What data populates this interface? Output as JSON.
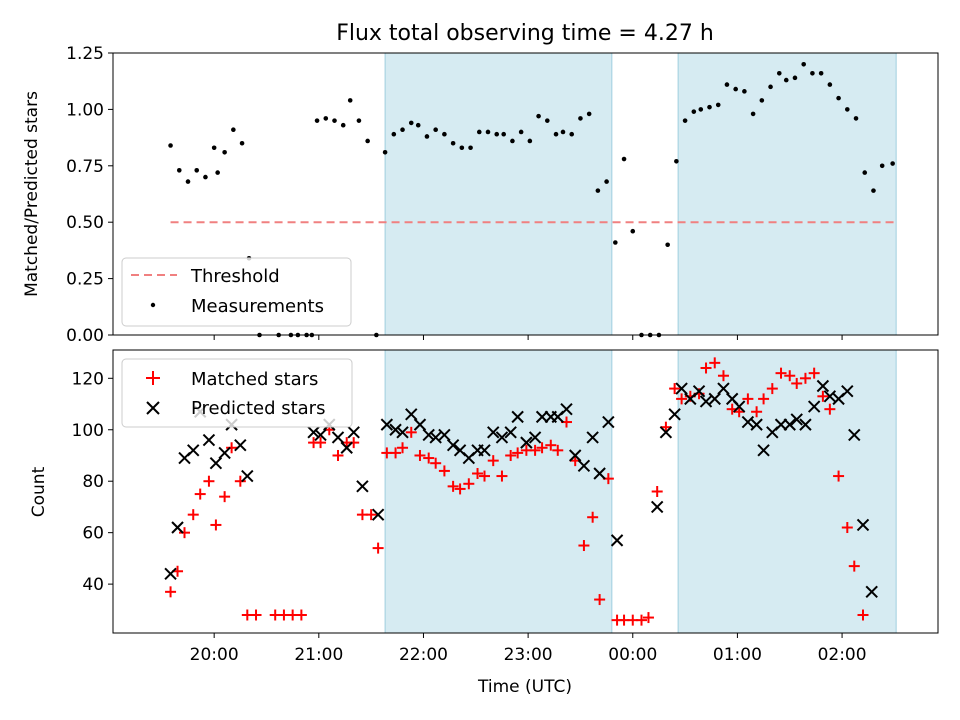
{
  "title": "Flux total observing time = 4.27 h",
  "xlabel": "Time (UTC)",
  "colors": {
    "span": "#add8e6",
    "threshold": "#f08080",
    "measurements": "#000000",
    "matched": "#ff0000",
    "predicted": "#000000"
  },
  "chart_data": [
    {
      "type": "scatter",
      "panel": "top",
      "ylabel": "Matched/Predicted stars",
      "ylim": [
        0,
        1.25
      ],
      "yticks": [
        "0.00",
        "0.25",
        "0.50",
        "0.75",
        "1.00",
        "1.25"
      ],
      "legend": {
        "placement": "lower-left",
        "entries": [
          "Threshold",
          "Measurements"
        ]
      },
      "threshold": {
        "name": "Threshold",
        "value": 0.5,
        "x_range": [
          "19:35",
          "02:31"
        ]
      },
      "shaded_spans": [
        [
          "21:38",
          "23:48"
        ],
        [
          "00:26",
          "02:31"
        ]
      ],
      "series": [
        {
          "name": "Measurements",
          "points": [
            [
              "19:35",
              0.84
            ],
            [
              "19:40",
              0.73
            ],
            [
              "19:45",
              0.68
            ],
            [
              "19:50",
              0.73
            ],
            [
              "19:55",
              0.7
            ],
            [
              "20:00",
              0.83
            ],
            [
              "20:02",
              0.72
            ],
            [
              "20:06",
              0.81
            ],
            [
              "20:11",
              0.91
            ],
            [
              "20:16",
              0.85
            ],
            [
              "20:20",
              0.34
            ],
            [
              "20:26",
              0.0
            ],
            [
              "20:37",
              0.0
            ],
            [
              "20:44",
              0.0
            ],
            [
              "20:48",
              0.0
            ],
            [
              "20:53",
              0.0
            ],
            [
              "20:56",
              0.0
            ],
            [
              "20:59",
              0.95
            ],
            [
              "21:04",
              0.96
            ],
            [
              "21:09",
              0.95
            ],
            [
              "21:14",
              0.93
            ],
            [
              "21:18",
              1.04
            ],
            [
              "21:23",
              0.95
            ],
            [
              "21:28",
              0.86
            ],
            [
              "21:33",
              0.0
            ],
            [
              "21:38",
              0.81
            ],
            [
              "21:43",
              0.89
            ],
            [
              "21:48",
              0.91
            ],
            [
              "21:53",
              0.94
            ],
            [
              "21:57",
              0.93
            ],
            [
              "22:02",
              0.88
            ],
            [
              "22:07",
              0.91
            ],
            [
              "22:12",
              0.89
            ],
            [
              "22:17",
              0.85
            ],
            [
              "22:22",
              0.83
            ],
            [
              "22:27",
              0.83
            ],
            [
              "22:32",
              0.9
            ],
            [
              "22:37",
              0.9
            ],
            [
              "22:42",
              0.89
            ],
            [
              "22:46",
              0.89
            ],
            [
              "22:51",
              0.86
            ],
            [
              "22:56",
              0.9
            ],
            [
              "23:01",
              0.86
            ],
            [
              "23:06",
              0.97
            ],
            [
              "23:11",
              0.95
            ],
            [
              "23:16",
              0.89
            ],
            [
              "23:20",
              0.9
            ],
            [
              "23:25",
              0.89
            ],
            [
              "23:30",
              0.96
            ],
            [
              "23:35",
              0.98
            ],
            [
              "23:40",
              0.64
            ],
            [
              "23:45",
              0.68
            ],
            [
              "23:50",
              0.41
            ],
            [
              "23:55",
              0.78
            ],
            [
              "24:00",
              0.46
            ],
            [
              "24:05",
              0.0
            ],
            [
              "24:10",
              0.0
            ],
            [
              "24:15",
              0.0
            ],
            [
              "24:20",
              0.4
            ],
            [
              "24:25",
              0.77
            ],
            [
              "24:30",
              0.95
            ],
            [
              "24:35",
              0.99
            ],
            [
              "24:39",
              1.0
            ],
            [
              "24:44",
              1.01
            ],
            [
              "24:49",
              1.02
            ],
            [
              "24:54",
              1.11
            ],
            [
              "24:59",
              1.09
            ],
            [
              "25:04",
              1.08
            ],
            [
              "25:09",
              0.98
            ],
            [
              "25:14",
              1.04
            ],
            [
              "25:19",
              1.1
            ],
            [
              "25:24",
              1.16
            ],
            [
              "25:28",
              1.13
            ],
            [
              "25:33",
              1.14
            ],
            [
              "25:38",
              1.2
            ],
            [
              "25:43",
              1.16
            ],
            [
              "25:48",
              1.16
            ],
            [
              "25:53",
              1.11
            ],
            [
              "25:58",
              1.05
            ],
            [
              "26:03",
              1.0
            ],
            [
              "26:08",
              0.96
            ],
            [
              "26:13",
              0.72
            ],
            [
              "26:18",
              0.64
            ],
            [
              "26:23",
              0.75
            ],
            [
              "26:29",
              0.76
            ]
          ]
        }
      ]
    },
    {
      "type": "scatter",
      "panel": "bottom",
      "ylabel": "Count",
      "ylim": [
        21,
        131
      ],
      "yticks": [
        "40",
        "60",
        "80",
        "100",
        "120"
      ],
      "legend": {
        "placement": "top-left",
        "entries": [
          "Matched stars",
          "Predicted stars"
        ]
      },
      "shaded_spans": [
        [
          "21:38",
          "23:48"
        ],
        [
          "00:26",
          "02:31"
        ]
      ],
      "xticks": [
        "20:00",
        "21:00",
        "22:00",
        "23:00",
        "00:00",
        "01:00",
        "02:00"
      ],
      "series": [
        {
          "name": "Matched stars",
          "marker": "+",
          "points": [
            [
              "19:35",
              37
            ],
            [
              "19:39",
              45
            ],
            [
              "19:43",
              60
            ],
            [
              "19:48",
              67
            ],
            [
              "19:52",
              75
            ],
            [
              "19:57",
              80
            ],
            [
              "20:01",
              63
            ],
            [
              "20:06",
              74
            ],
            [
              "20:10",
              93
            ],
            [
              "20:15",
              80
            ],
            [
              "20:19",
              28
            ],
            [
              "20:24",
              28
            ],
            [
              "20:35",
              28
            ],
            [
              "20:40",
              28
            ],
            [
              "20:45",
              28
            ],
            [
              "20:50",
              28
            ],
            [
              "20:57",
              95
            ],
            [
              "21:01",
              95
            ],
            [
              "21:06",
              100
            ],
            [
              "21:11",
              90
            ],
            [
              "21:16",
              95
            ],
            [
              "21:20",
              95
            ],
            [
              "21:25",
              67
            ],
            [
              "21:30",
              67
            ],
            [
              "21:34",
              54
            ],
            [
              "21:39",
              91
            ],
            [
              "21:44",
              91
            ],
            [
              "21:48",
              93
            ],
            [
              "21:53",
              99
            ],
            [
              "21:58",
              90
            ],
            [
              "22:03",
              89
            ],
            [
              "22:07",
              87
            ],
            [
              "22:12",
              84
            ],
            [
              "22:17",
              78
            ],
            [
              "22:21",
              77
            ],
            [
              "22:26",
              79
            ],
            [
              "22:31",
              83
            ],
            [
              "22:35",
              82
            ],
            [
              "22:40",
              88
            ],
            [
              "22:45",
              82
            ],
            [
              "22:50",
              90
            ],
            [
              "22:54",
              91
            ],
            [
              "22:59",
              92
            ],
            [
              "23:04",
              92
            ],
            [
              "23:08",
              93
            ],
            [
              "23:13",
              94
            ],
            [
              "23:17",
              92
            ],
            [
              "23:22",
              103
            ],
            [
              "23:27",
              88
            ],
            [
              "23:32",
              55
            ],
            [
              "23:37",
              66
            ],
            [
              "23:41",
              34
            ],
            [
              "23:46",
              81
            ],
            [
              "23:51",
              26
            ],
            [
              "23:55",
              26
            ],
            [
              "24:00",
              26
            ],
            [
              "24:05",
              26
            ],
            [
              "24:09",
              27
            ],
            [
              "24:14",
              76
            ],
            [
              "24:19",
              101
            ],
            [
              "24:24",
              116
            ],
            [
              "24:28",
              112
            ],
            [
              "24:33",
              113
            ],
            [
              "24:38",
              114
            ],
            [
              "24:42",
              124
            ],
            [
              "24:47",
              126
            ],
            [
              "24:52",
              121
            ],
            [
              "24:57",
              108
            ],
            [
              "25:01",
              107
            ],
            [
              "25:06",
              112
            ],
            [
              "25:11",
              107
            ],
            [
              "25:15",
              112
            ],
            [
              "25:20",
              116
            ],
            [
              "25:25",
              122
            ],
            [
              "25:30",
              121
            ],
            [
              "25:34",
              118
            ],
            [
              "25:39",
              120
            ],
            [
              "25:44",
              122
            ],
            [
              "25:49",
              113
            ],
            [
              "25:53",
              108
            ],
            [
              "25:58",
              82
            ],
            [
              "26:03",
              62
            ],
            [
              "26:07",
              47
            ],
            [
              "26:12",
              28
            ]
          ]
        },
        {
          "name": "Predicted stars",
          "marker": "x",
          "points": [
            [
              "19:35",
              44
            ],
            [
              "19:39",
              62
            ],
            [
              "19:43",
              89
            ],
            [
              "19:48",
              92
            ],
            [
              "19:52",
              107
            ],
            [
              "19:57",
              96
            ],
            [
              "20:01",
              87
            ],
            [
              "20:06",
              91
            ],
            [
              "20:10",
              102
            ],
            [
              "20:15",
              94
            ],
            [
              "20:19",
              82
            ],
            [
              "20:57",
              99
            ],
            [
              "21:01",
              98
            ],
            [
              "21:06",
              102
            ],
            [
              "21:11",
              97
            ],
            [
              "21:16",
              93
            ],
            [
              "21:20",
              99
            ],
            [
              "21:25",
              78
            ],
            [
              "21:34",
              67
            ],
            [
              "21:39",
              102
            ],
            [
              "21:44",
              100
            ],
            [
              "21:48",
              99
            ],
            [
              "21:53",
              106
            ],
            [
              "21:58",
              102
            ],
            [
              "22:03",
              98
            ],
            [
              "22:07",
              97
            ],
            [
              "22:12",
              98
            ],
            [
              "22:17",
              94
            ],
            [
              "22:21",
              92
            ],
            [
              "22:26",
              89
            ],
            [
              "22:31",
              92
            ],
            [
              "22:35",
              92
            ],
            [
              "22:40",
              99
            ],
            [
              "22:45",
              97
            ],
            [
              "22:50",
              99
            ],
            [
              "22:54",
              105
            ],
            [
              "22:59",
              95
            ],
            [
              "23:04",
              97
            ],
            [
              "23:08",
              105
            ],
            [
              "23:13",
              105
            ],
            [
              "23:17",
              105
            ],
            [
              "23:22",
              108
            ],
            [
              "23:27",
              90
            ],
            [
              "23:32",
              86
            ],
            [
              "23:37",
              97
            ],
            [
              "23:41",
              83
            ],
            [
              "23:46",
              103
            ],
            [
              "23:51",
              57
            ],
            [
              "24:14",
              70
            ],
            [
              "24:19",
              99
            ],
            [
              "24:24",
              106
            ],
            [
              "24:28",
              116
            ],
            [
              "24:33",
              112
            ],
            [
              "24:38",
              115
            ],
            [
              "24:42",
              111
            ],
            [
              "24:47",
              112
            ],
            [
              "24:52",
              116
            ],
            [
              "24:57",
              112
            ],
            [
              "25:01",
              109
            ],
            [
              "25:06",
              103
            ],
            [
              "25:11",
              102
            ],
            [
              "25:15",
              92
            ],
            [
              "25:20",
              99
            ],
            [
              "25:25",
              102
            ],
            [
              "25:30",
              102
            ],
            [
              "25:34",
              104
            ],
            [
              "25:39",
              102
            ],
            [
              "25:44",
              109
            ],
            [
              "25:49",
              117
            ],
            [
              "25:53",
              113
            ],
            [
              "25:58",
              112
            ],
            [
              "26:03",
              115
            ],
            [
              "26:07",
              98
            ],
            [
              "26:12",
              63
            ],
            [
              "26:17",
              37
            ]
          ]
        }
      ]
    }
  ]
}
